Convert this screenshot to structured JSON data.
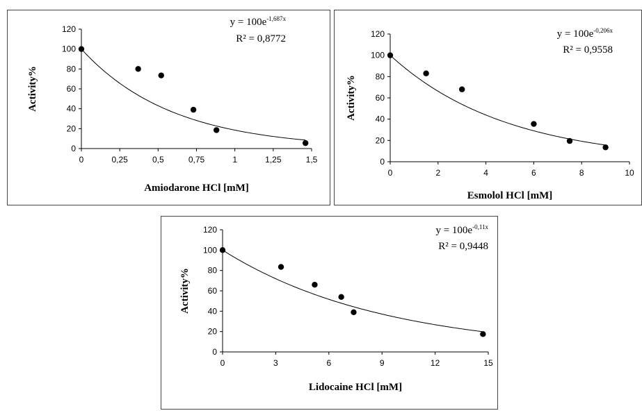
{
  "chart_data": [
    {
      "type": "scatter",
      "panel": "amiodarone",
      "xlabel": "Amiodarone HCl [mM]",
      "ylabel": "Activity%",
      "xlim": [
        0,
        1.5
      ],
      "ylim": [
        0,
        120
      ],
      "xticks": [
        0,
        0.25,
        0.5,
        0.75,
        1,
        1.25,
        1.5
      ],
      "xtick_labels": [
        "0",
        "0,25",
        "0,5",
        "0,75",
        "1",
        "1,25",
        "1,5"
      ],
      "yticks": [
        0,
        20,
        40,
        60,
        80,
        100,
        120
      ],
      "ytick_labels": [
        "0",
        "20",
        "40",
        "60",
        "80",
        "100",
        "120"
      ],
      "points": {
        "x": [
          0,
          0.37,
          0.52,
          0.73,
          0.88,
          1.46
        ],
        "y": [
          100,
          80,
          73.5,
          39,
          18.5,
          5.5
        ]
      },
      "trendline": {
        "a": 100,
        "k": 1.687
      },
      "equation_text": {
        "base": "y = 100e",
        "exponent": "-1,687x"
      },
      "r2_text": "R² = 0,8772"
    },
    {
      "type": "scatter",
      "panel": "esmolol",
      "xlabel": "Esmolol HCl [mM]",
      "ylabel": "Activity%",
      "xlim": [
        0,
        10
      ],
      "ylim": [
        0,
        120
      ],
      "xticks": [
        0,
        2,
        4,
        6,
        8,
        10
      ],
      "xtick_labels": [
        "0",
        "2",
        "4",
        "6",
        "8",
        "10"
      ],
      "yticks": [
        0,
        20,
        40,
        60,
        80,
        100,
        120
      ],
      "ytick_labels": [
        "0",
        "20",
        "40",
        "60",
        "80",
        "100",
        "120"
      ],
      "points": {
        "x": [
          0,
          1.5,
          3,
          6,
          7.5,
          9
        ],
        "y": [
          100,
          83,
          68,
          35.5,
          19.5,
          13.5
        ]
      },
      "trendline": {
        "a": 100,
        "k": 0.206
      },
      "equation_text": {
        "base": "y = 100e",
        "exponent": "-0,206x"
      },
      "r2_text": "R² = 0,9558"
    },
    {
      "type": "scatter",
      "panel": "lidocaine",
      "xlabel": "Lidocaine HCl [mM]",
      "ylabel": "Activity%",
      "xlim": [
        0,
        15
      ],
      "ylim": [
        0,
        120
      ],
      "xticks": [
        0,
        3,
        6,
        9,
        12,
        15
      ],
      "xtick_labels": [
        "0",
        "3",
        "6",
        "9",
        "12",
        "15"
      ],
      "yticks": [
        0,
        20,
        40,
        60,
        80,
        100,
        120
      ],
      "ytick_labels": [
        "0",
        "20",
        "40",
        "60",
        "80",
        "100",
        "120"
      ],
      "points": {
        "x": [
          0,
          3.3,
          5.2,
          6.7,
          7.4,
          14.7
        ],
        "y": [
          100,
          83.5,
          66,
          54,
          39,
          17.5
        ]
      },
      "trendline": {
        "a": 100,
        "k": 0.11
      },
      "equation_text": {
        "base": "y = 100e",
        "exponent": "-0,11x"
      },
      "r2_text": "R² = 0,9448"
    }
  ]
}
